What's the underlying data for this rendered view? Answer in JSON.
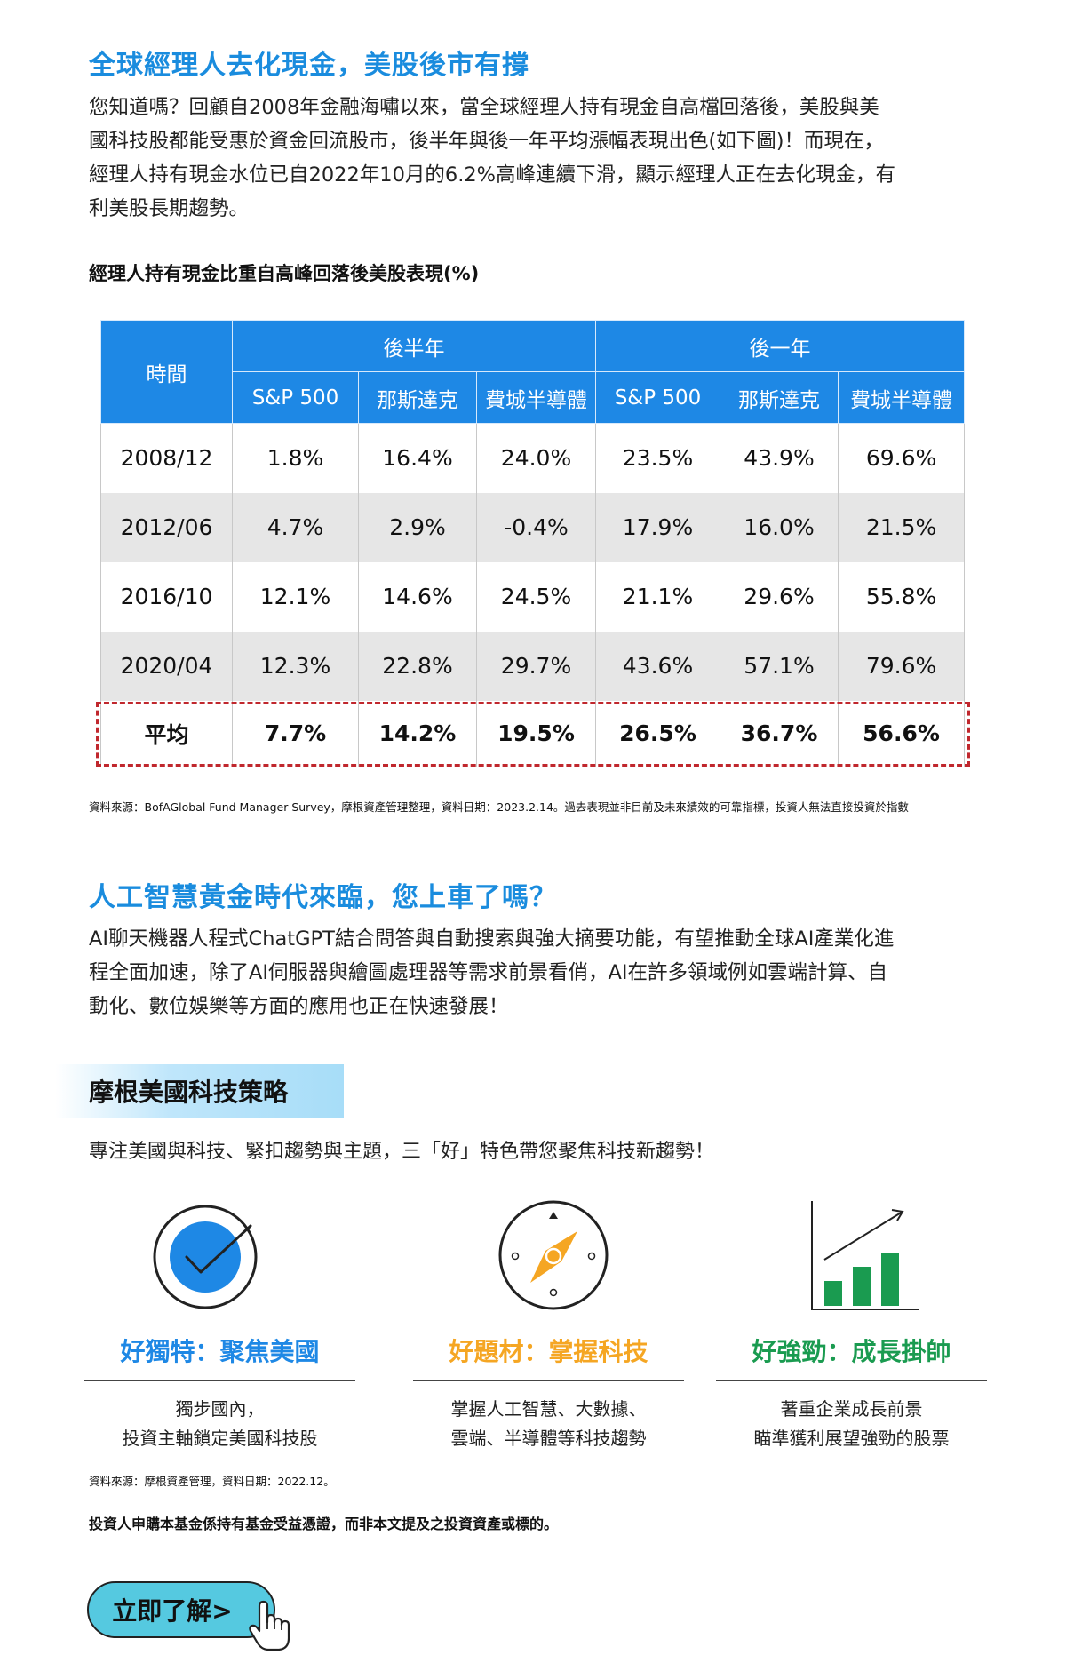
{
  "section1": {
    "title": "全球經理人去化現金，美股後市有撐",
    "paragraph_lines": [
      "您知道嗎？回顧自2008年金融海嘯以來，當全球經理人持有現金自高檔回落後，美股與美",
      "國科技股都能受惠於資金回流股市，後半年與後一年平均漲幅表現出色(如下圖)！而現在，",
      "經理人持有現金水位已自2022年10月的6.2%高峰連續下滑，顯示經理人正在去化現金，有",
      "利美股長期趨勢。"
    ]
  },
  "table": {
    "caption": "經理人持有現金比重自高峰回落後美股表現(%)",
    "col_time": "時間",
    "group_half": "後半年",
    "group_year": "後一年",
    "subheaders": [
      "S&P 500",
      "那斯達克",
      "費城半導體",
      "S&P 500",
      "那斯達克",
      "費城半導體"
    ],
    "rows": [
      [
        "2008/12",
        "1.8%",
        "16.4%",
        "24.0%",
        "23.5%",
        "43.9%",
        "69.6%"
      ],
      [
        "2012/06",
        "4.7%",
        "2.9%",
        "-0.4%",
        "17.9%",
        "16.0%",
        "21.5%"
      ],
      [
        "2016/10",
        "12.1%",
        "14.6%",
        "24.5%",
        "21.1%",
        "29.6%",
        "55.8%"
      ],
      [
        "2020/04",
        "12.3%",
        "22.8%",
        "29.7%",
        "43.6%",
        "57.1%",
        "79.6%"
      ]
    ],
    "average": [
      "平均",
      "7.7%",
      "14.2%",
      "19.5%",
      "26.5%",
      "36.7%",
      "56.6%"
    ],
    "source": "資料來源：BofAGlobal Fund Manager Survey，摩根資產管理整理，資料日期：2023.2.14。過去表現並非目前及未來績效的可靠指標，投資人無法直接投資於指數"
  },
  "section2": {
    "title": "人工智慧黃金時代來臨，您上車了嗎？",
    "paragraph_lines": [
      "AI聊天機器人程式ChatGPT結合問答與自動搜索與強大摘要功能，有望推動全球AI產業化進",
      "程全面加速，除了AI伺服器與繪圖處理器等需求前景看俏，AI在許多領域例如雲端計算、自",
      "動化、數位娛樂等方面的應用也正在快速發展！"
    ]
  },
  "strategy": {
    "title": "摩根美國科技策略",
    "intro": "專注美國與科技、緊扣趨勢與主題，三「好」特色帶您聚焦科技新趨勢！",
    "features": [
      {
        "icon": "checkmark-circle-icon",
        "title": "好獨特：聚焦美國",
        "color": "#1e88e5",
        "desc": [
          "獨步國內，",
          "投資主軸鎖定美國科技股"
        ]
      },
      {
        "icon": "compass-icon",
        "title": "好題材：掌握科技",
        "color": "#f5a623",
        "desc": [
          "掌握人工智慧、大數據、",
          "雲端、半導體等科技趨勢"
        ]
      },
      {
        "icon": "growth-chart-icon",
        "title": "好強勁：成長掛帥",
        "color": "#1a9b50",
        "desc": [
          "著重企業成長前景",
          "瞄準獲利展望強勁的股票"
        ]
      }
    ],
    "source": "資料來源：摩根資產管理，資料日期：2022.12。"
  },
  "disclaimer": "投資人申購本基金係持有基金受益憑證，而非本文提及之投資資產或標的。",
  "cta": {
    "label": "立即了解>",
    "icon": "pointer-hand-icon"
  }
}
